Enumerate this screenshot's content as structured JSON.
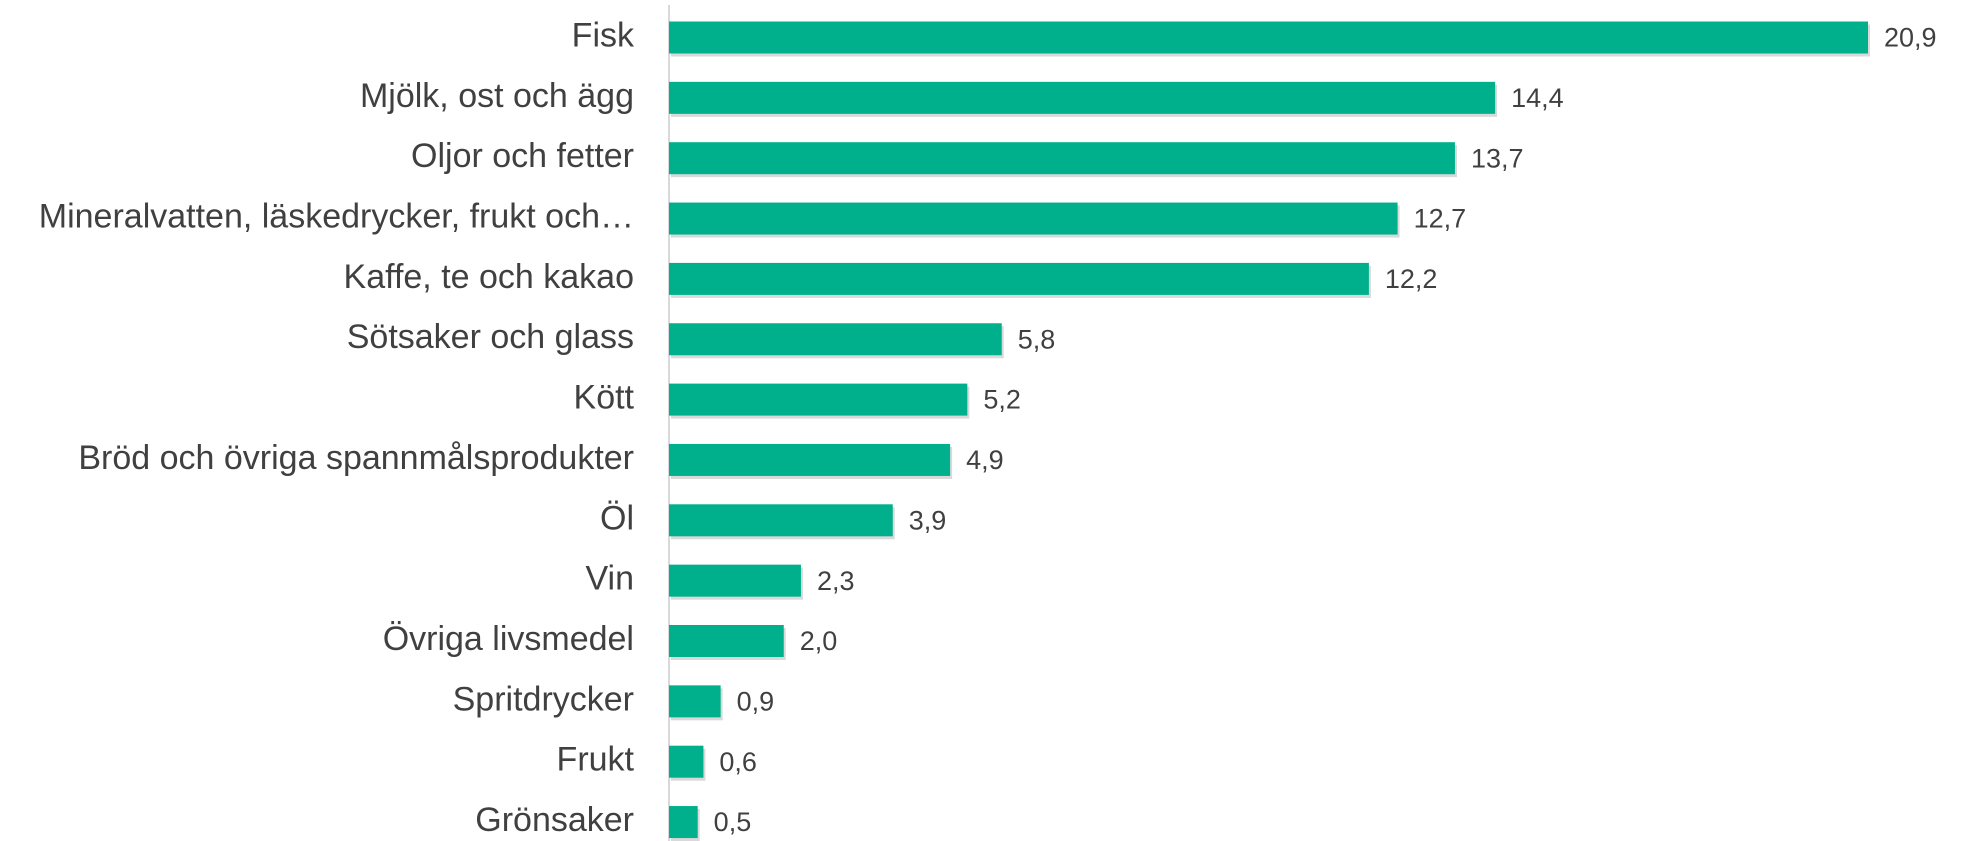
{
  "chart_data": {
    "type": "bar",
    "orientation": "horizontal",
    "categories": [
      "Fisk",
      "Mjölk, ost och ägg",
      "Oljor och fetter",
      "Mineralvatten, läskedrycker, frukt och…",
      "Kaffe, te och kakao",
      "Sötsaker och glass",
      "Kött",
      "Bröd och övriga spannmålsprodukter",
      "Öl",
      "Vin",
      "Övriga  livsmedel",
      "Spritdrycker",
      "Frukt",
      "Grönsaker"
    ],
    "values": [
      20.9,
      14.4,
      13.7,
      12.7,
      12.2,
      5.8,
      5.2,
      4.9,
      3.9,
      2.3,
      2.0,
      0.9,
      0.6,
      0.5
    ],
    "value_labels": [
      "20,9",
      "14,4",
      "13,7",
      "12,7",
      "12,2",
      "5,8",
      "5,2",
      "4,9",
      "3,9",
      "2,3",
      "2,0",
      "0,9",
      "0,6",
      "0,5"
    ],
    "color": "#00b08c"
  }
}
